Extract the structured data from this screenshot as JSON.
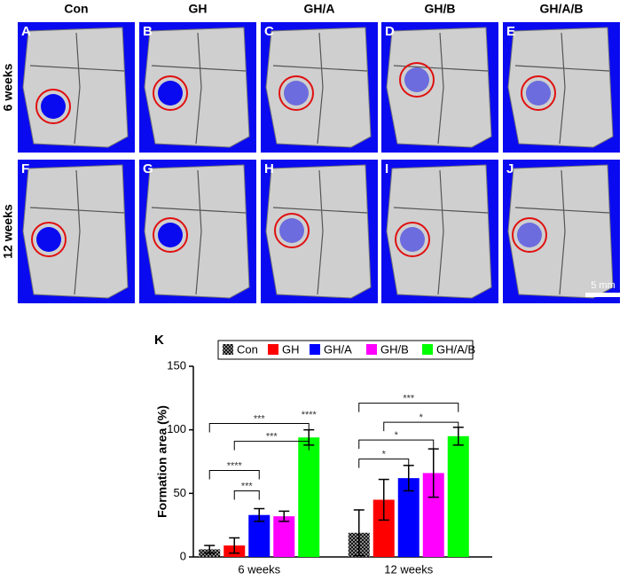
{
  "figure": {
    "columns": [
      "Con",
      "GH",
      "GH/A",
      "GH/B",
      "GH/A/B"
    ],
    "rows": [
      "6 weeks",
      "12 weeks"
    ],
    "panels": [
      "A",
      "B",
      "C",
      "D",
      "E",
      "F",
      "G",
      "H",
      "I",
      "J"
    ],
    "scale_bar": "5 mm"
  },
  "chart_data": {
    "type": "bar",
    "panel_label": "K",
    "y_label": "Formation area (%)",
    "categories": [
      "6 weeks",
      "12 weeks"
    ],
    "series": [
      {
        "name": "Con",
        "color": "#222222",
        "pattern": "checker",
        "values": [
          6,
          19
        ],
        "errors": [
          3,
          18
        ]
      },
      {
        "name": "GH",
        "color": "#ff0000",
        "values": [
          9,
          45
        ],
        "errors": [
          6,
          16
        ]
      },
      {
        "name": "GH/A",
        "color": "#0000ff",
        "values": [
          33,
          62
        ],
        "errors": [
          5,
          10
        ]
      },
      {
        "name": "GH/B",
        "color": "#ff00ff",
        "values": [
          32,
          66
        ],
        "errors": [
          4,
          19
        ]
      },
      {
        "name": "GH/A/B",
        "color": "#00ff00",
        "values": [
          94,
          95
        ],
        "errors": [
          6,
          7
        ]
      }
    ],
    "ylim": [
      0,
      150
    ],
    "yticks": [
      0,
      50,
      100,
      150
    ],
    "legend": "top",
    "annotations": [
      {
        "text": "***",
        "group": "6 weeks",
        "from": "Con",
        "to": "GH/A/B",
        "y": 105
      },
      {
        "text": "***",
        "group": "6 weeks",
        "from": "GH",
        "to": "GH/A/B",
        "y": 91
      },
      {
        "text": "****",
        "group": "6 weeks",
        "from": "Con",
        "to": "GH/A",
        "y": 68
      },
      {
        "text": "***",
        "group": "6 weeks",
        "from": "GH",
        "to": "GH/A",
        "y": 52
      },
      {
        "text": "****",
        "group": "6 weeks",
        "from": "GH/A/B",
        "to": "GH/A/B",
        "y": 108
      },
      {
        "text": "***",
        "group": "12 weeks",
        "from": "Con",
        "to": "GH/A/B",
        "y": 121
      },
      {
        "text": "*",
        "group": "12 weeks",
        "from": "GH",
        "to": "GH/A/B",
        "y": 106
      },
      {
        "text": "*",
        "group": "12 weeks",
        "from": "Con",
        "to": "GH/B",
        "y": 92
      },
      {
        "text": "*",
        "group": "12 weeks",
        "from": "Con",
        "to": "GH/A",
        "y": 77
      }
    ]
  }
}
